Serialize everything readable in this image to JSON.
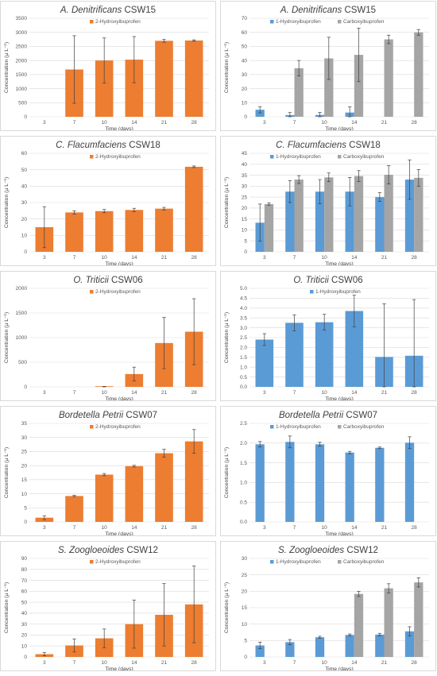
{
  "colors": {
    "series1": "#ED7D31",
    "series_blue": "#5B9BD5",
    "series_gray": "#A5A5A5",
    "grid": "#D9D9D9",
    "error": "#404040"
  },
  "chart_data": [
    {
      "type": "bar",
      "title_italic": "A. Denitrificans",
      "title_rest": " CSW15",
      "xlabel": "Time (days)",
      "ylabel": "Concentration (µ L⁻¹)",
      "categories": [
        "3",
        "7",
        "10",
        "14",
        "21",
        "28"
      ],
      "ylim": [
        0,
        3500
      ],
      "yticks": [
        0,
        500,
        1000,
        1500,
        2000,
        2500,
        3000,
        3500
      ],
      "ydec": 0,
      "series": [
        {
          "name": "2-Hydroxyibuprofen",
          "color": "#ED7D31",
          "values": [
            0,
            1680,
            2000,
            2030,
            2700,
            2710
          ],
          "errors": [
            0,
            1200,
            800,
            820,
            50,
            25
          ]
        }
      ]
    },
    {
      "type": "bar",
      "title_italic": "A. Denitrificans",
      "title_rest": " CSW15",
      "xlabel": "Time (days)",
      "ylabel": "Concentration (µ L⁻¹)",
      "categories": [
        "3",
        "7",
        "10",
        "14",
        "21",
        "28"
      ],
      "ylim": [
        0,
        70
      ],
      "yticks": [
        0,
        10,
        20,
        30,
        40,
        50,
        60,
        70
      ],
      "ydec": 0,
      "series": [
        {
          "name": "1-Hydroxyibuprofen",
          "color": "#5B9BD5",
          "values": [
            5,
            1.2,
            1.3,
            3,
            0,
            0
          ],
          "errors": [
            2.2,
            1.8,
            1.8,
            4,
            0,
            0
          ]
        },
        {
          "name": "Carboxyibuprofen",
          "color": "#A5A5A5",
          "values": [
            0,
            34.5,
            41.5,
            44,
            55,
            60
          ],
          "errors": [
            0,
            5.5,
            15,
            19,
            3,
            2
          ]
        }
      ]
    },
    {
      "type": "bar",
      "title_italic": "C. Flacumfaciens",
      "title_rest": " CSW18",
      "xlabel": "Time (days)",
      "ylabel": "Concentration (µ L⁻¹)",
      "categories": [
        "3",
        "7",
        "10",
        "14",
        "21",
        "28"
      ],
      "ylim": [
        0,
        60
      ],
      "yticks": [
        0,
        10,
        20,
        30,
        40,
        50,
        60
      ],
      "ydec": 0,
      "series": [
        {
          "name": "2-Hydroxyibuprofen",
          "color": "#ED7D31",
          "values": [
            15,
            24,
            24.8,
            25.5,
            26.3,
            51.8
          ],
          "errors": [
            12.5,
            1,
            1,
            1,
            0.8,
            0.5
          ]
        }
      ]
    },
    {
      "type": "bar",
      "title_italic": "C. Flacumfaciens",
      "title_rest": " CSW18",
      "xlabel": "Time (days)",
      "ylabel": "Concentration (µ L⁻¹)",
      "categories": [
        "3",
        "7",
        "10",
        "14",
        "21",
        "28"
      ],
      "ylim": [
        0,
        45
      ],
      "yticks": [
        0,
        5,
        10,
        15,
        20,
        25,
        30,
        35,
        40,
        45
      ],
      "ydec": 0,
      "series": [
        {
          "name": "1-Hydroxyibuprofen",
          "color": "#5B9BD5",
          "values": [
            13.3,
            27.5,
            27.5,
            27.5,
            25,
            33
          ],
          "errors": [
            8.5,
            5,
            5.5,
            6.5,
            2,
            9
          ]
        },
        {
          "name": "Carboxyibuprofen",
          "color": "#A5A5A5",
          "values": [
            21.8,
            33,
            34,
            34.6,
            35.2,
            33.8
          ],
          "errors": [
            0.5,
            1.8,
            2,
            2.5,
            4.2,
            3.8
          ]
        }
      ]
    },
    {
      "type": "bar",
      "title_italic": "O. Triticii",
      "title_rest": " CSW06",
      "xlabel": "Time (days)",
      "ylabel": "Concentration (µ L⁻¹)",
      "categories": [
        "3",
        "7",
        "10",
        "14",
        "21",
        "28"
      ],
      "ylim": [
        0,
        2000
      ],
      "yticks": [
        0,
        500,
        1000,
        1500,
        2000
      ],
      "ydec": 0,
      "series": [
        {
          "name": "2-Hydroxyibuprofen",
          "color": "#ED7D31",
          "values": [
            0,
            0,
            5,
            260,
            890,
            1120
          ],
          "errors": [
            0,
            0,
            5,
            140,
            520,
            670
          ]
        }
      ]
    },
    {
      "type": "bar",
      "title_italic": "O. Triticii",
      "title_rest": " CSW06",
      "xlabel": "Time (days)",
      "ylabel": "Concentration (µ L⁻¹)",
      "categories": [
        "3",
        "7",
        "10",
        "14",
        "21",
        "28"
      ],
      "ylim": [
        0,
        5
      ],
      "yticks": [
        0,
        0.5,
        1,
        1.5,
        2,
        2.5,
        3,
        3.5,
        4,
        4.5,
        5
      ],
      "ydec": 1,
      "series": [
        {
          "name": "1-Hydroxyibuprofen",
          "color": "#5B9BD5",
          "values": [
            2.4,
            3.25,
            3.28,
            3.85,
            1.52,
            1.58
          ],
          "errors": [
            0.3,
            0.4,
            0.4,
            0.8,
            2.7,
            2.85
          ]
        }
      ]
    },
    {
      "type": "bar",
      "title_italic": "Bordetella Petrii",
      "title_rest": " CSW07",
      "xlabel": "Time (days)",
      "ylabel": "Concentration (µ L⁻¹)",
      "categories": [
        "3",
        "7",
        "10",
        "14",
        "21",
        "28"
      ],
      "ylim": [
        0,
        35
      ],
      "yticks": [
        0,
        5,
        10,
        15,
        20,
        25,
        30,
        35
      ],
      "ydec": 0,
      "series": [
        {
          "name": "2-Hydroxyibuprofen",
          "color": "#ED7D31",
          "values": [
            1.5,
            9.2,
            16.8,
            19.8,
            24.4,
            28.6
          ],
          "errors": [
            0.7,
            0.2,
            0.4,
            0.3,
            1.4,
            4.2
          ]
        }
      ]
    },
    {
      "type": "bar",
      "title_italic": "Bordetella Petrii",
      "title_rest": " CSW07",
      "xlabel": "Time (days)",
      "ylabel": "Concentration (µ L⁻¹)",
      "categories": [
        "3",
        "7",
        "10",
        "14",
        "21",
        "28"
      ],
      "ylim": [
        0,
        2.5
      ],
      "yticks": [
        0,
        0.5,
        1,
        1.5,
        2,
        2.5
      ],
      "ydec": 1,
      "series": [
        {
          "name": "1-Hydroxyibuprofen",
          "color": "#5B9BD5",
          "values": [
            1.97,
            2.03,
            1.97,
            1.76,
            1.88,
            2.01
          ],
          "errors": [
            0.07,
            0.15,
            0.05,
            0.03,
            0.02,
            0.15
          ]
        },
        {
          "name": "Carboxyibuprofen",
          "color": "#A5A5A5",
          "values": [
            0,
            0,
            0,
            0,
            0,
            0
          ],
          "errors": [
            0,
            0,
            0,
            0,
            0,
            0
          ]
        }
      ]
    },
    {
      "type": "bar",
      "title_italic": "S. Zoogloeoides",
      "title_rest": " CSW12",
      "xlabel": "Time (days)",
      "ylabel": "Concentration (µ L⁻¹)",
      "categories": [
        "3",
        "7",
        "10",
        "14",
        "21",
        "28"
      ],
      "ylim": [
        0,
        90
      ],
      "yticks": [
        0,
        10,
        20,
        30,
        40,
        50,
        60,
        70,
        80,
        90
      ],
      "ydec": 0,
      "series": [
        {
          "name": "2-Hydroxyibuprofen",
          "color": "#ED7D31",
          "values": [
            2.5,
            10.5,
            17,
            30,
            38.5,
            48
          ],
          "errors": [
            1.5,
            6,
            8.5,
            22,
            28.5,
            35
          ]
        }
      ]
    },
    {
      "type": "bar",
      "title_italic": "S. Zoogloeoides",
      "title_rest": " CSW12",
      "xlabel": "Time (days)",
      "ylabel": "Concentration (µ L⁻¹)",
      "categories": [
        "3",
        "7",
        "10",
        "14",
        "21",
        "28"
      ],
      "ylim": [
        0,
        30
      ],
      "yticks": [
        0,
        5,
        10,
        15,
        20,
        25,
        30
      ],
      "ydec": 0,
      "series": [
        {
          "name": "1-Hydroxyibuprofen",
          "color": "#5B9BD5",
          "values": [
            3.5,
            4.5,
            6,
            6.7,
            6.8,
            7.8
          ],
          "errors": [
            1,
            0.8,
            0.3,
            0.3,
            0.4,
            1.4
          ]
        },
        {
          "name": "Carboxyibuprofen",
          "color": "#A5A5A5",
          "values": [
            0,
            0,
            0,
            19.2,
            20.9,
            22.7
          ],
          "errors": [
            0,
            0,
            0,
            0.8,
            1.4,
            1.4
          ]
        }
      ]
    }
  ]
}
